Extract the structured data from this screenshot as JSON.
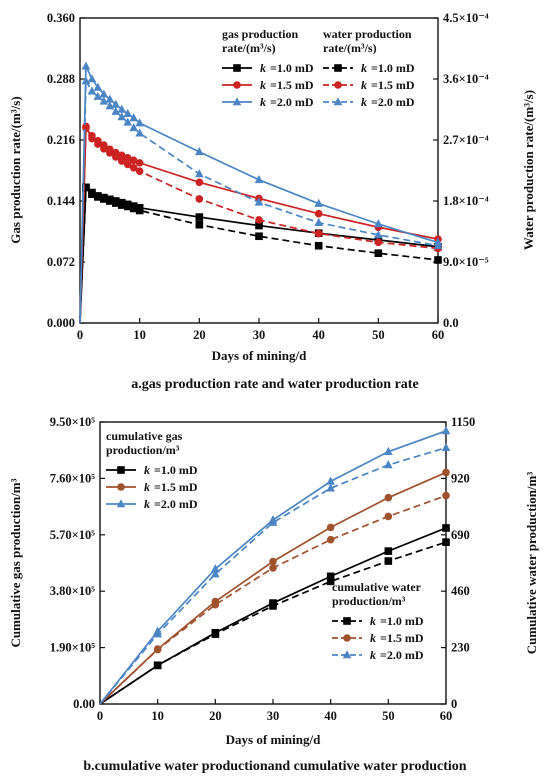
{
  "chart_data": [
    {
      "type": "line",
      "caption": "a.gas production rate and water production rate",
      "xlabel": "Days of mining/d",
      "ylabel": "Gas production rate/(m³/s)",
      "y2label": "Water production rate/(m³/s)",
      "xlim": [
        0,
        60
      ],
      "ylim": [
        0,
        0.36
      ],
      "y2lim": [
        0,
        0.00045
      ],
      "xticks": [
        "0",
        "10",
        "20",
        "30",
        "40",
        "50",
        "60"
      ],
      "yticks": [
        "0.000",
        "0.072",
        "0.144",
        "0.216",
        "0.288",
        "0.360"
      ],
      "y2ticks": [
        "0.0",
        "9.0×10⁻⁵",
        "1.8×10⁻⁴",
        "2.7×10⁻⁴",
        "3.6×10⁻⁴",
        "4.5×10⁻⁴"
      ],
      "legend_left_title": [
        "gas production",
        "rate/(m³/s)"
      ],
      "legend_right_title": [
        "water production",
        "rate/(m³/s)"
      ],
      "legend_labels": [
        "=1.0 mD",
        "=1.5 mD",
        "=2.0 mD"
      ],
      "legend_k": "k",
      "x": [
        0,
        1,
        2,
        3,
        4,
        5,
        6,
        7,
        8,
        9,
        10,
        20,
        30,
        40,
        50,
        60
      ],
      "series": [
        {
          "name": "k =1.0 mD",
          "kind": "gas",
          "axis": "left",
          "color": "#000000",
          "marker": "square",
          "dash": false,
          "values": [
            0,
            0.16,
            0.154,
            0.15,
            0.148,
            0.146,
            0.144,
            0.142,
            0.14,
            0.138,
            0.136,
            0.125,
            0.115,
            0.106,
            0.098,
            0.09
          ]
        },
        {
          "name": "k =1.5 mD",
          "kind": "gas",
          "axis": "left",
          "color": "#cc2222",
          "marker": "circle",
          "dash": false,
          "values": [
            0,
            0.23,
            0.221,
            0.215,
            0.21,
            0.205,
            0.201,
            0.198,
            0.195,
            0.192,
            0.189,
            0.166,
            0.147,
            0.129,
            0.113,
            0.099
          ]
        },
        {
          "name": "k =2.0 mD",
          "kind": "gas",
          "axis": "left",
          "color": "#4a86c4",
          "marker": "triangle",
          "dash": false,
          "values": [
            0,
            0.303,
            0.288,
            0.278,
            0.27,
            0.264,
            0.258,
            0.252,
            0.247,
            0.242,
            0.236,
            0.202,
            0.169,
            0.141,
            0.117,
            0.095
          ]
        },
        {
          "name": "k =1.0 mD",
          "kind": "water",
          "axis": "right",
          "color": "#000000",
          "marker": "square",
          "dash": true,
          "values": [
            0,
            0.0002,
            0.00019,
            0.000186,
            0.000183,
            0.00018,
            0.000177,
            0.000174,
            0.000172,
            0.000169,
            0.000166,
            0.000145,
            0.000128,
            0.000114,
            0.000103,
            9.3e-05
          ]
        },
        {
          "name": "k =1.5 mD",
          "kind": "water",
          "axis": "right",
          "color": "#cc2222",
          "marker": "circle",
          "dash": true,
          "values": [
            0,
            0.00029,
            0.000272,
            0.000264,
            0.000257,
            0.000251,
            0.000245,
            0.000239,
            0.000234,
            0.000229,
            0.000224,
            0.000183,
            0.000152,
            0.000132,
            0.000119,
            0.00011
          ]
        },
        {
          "name": "k =2.0 mD",
          "kind": "water",
          "axis": "right",
          "color": "#4a86c4",
          "marker": "triangle",
          "dash": true,
          "values": [
            0,
            0.000357,
            0.000342,
            0.000334,
            0.000327,
            0.00032,
            0.000312,
            0.000304,
            0.000296,
            0.000288,
            0.00028,
            0.00022,
            0.000178,
            0.000148,
            0.00013,
            0.000114
          ]
        }
      ]
    },
    {
      "type": "line",
      "caption": "b.cumulative water productionand cumulative water production",
      "xlabel": "Days of mining/d",
      "ylabel": "Cumulative gas production/m³",
      "y2label": "Cumulative water production/m³",
      "xlim": [
        0,
        60
      ],
      "ylim": [
        0,
        950000
      ],
      "y2lim": [
        0,
        1150
      ],
      "xticks": [
        "0",
        "10",
        "20",
        "30",
        "40",
        "50",
        "60"
      ],
      "yticks": [
        "0.00",
        "1.90×10⁵",
        "3.80×10⁵",
        "5.70×10⁵",
        "7.60×10⁵",
        "9.50×10⁵"
      ],
      "y2ticks": [
        "0",
        "230",
        "460",
        "690",
        "920",
        "1150"
      ],
      "legend_left_title": [
        "cumulative gas",
        "production/m³"
      ],
      "legend_right_title": [
        "cumulative water",
        "production/m³"
      ],
      "legend_labels": [
        "=1.0 mD",
        "=1.5 mD",
        "=2.0 mD"
      ],
      "legend_k": "k",
      "x": [
        0,
        10,
        20,
        30,
        40,
        50,
        60
      ],
      "series": [
        {
          "name": "k =1.0 mD",
          "kind": "gas",
          "axis": "left",
          "color": "#000000",
          "marker": "square",
          "dash": false,
          "values": [
            0,
            130000,
            240000,
            340000,
            430000,
            515000,
            593000
          ]
        },
        {
          "name": "k =1.5 mD",
          "kind": "gas",
          "axis": "left",
          "color": "#a0522d",
          "marker": "circle",
          "dash": false,
          "values": [
            0,
            185000,
            345000,
            480000,
            595000,
            695000,
            780000
          ]
        },
        {
          "name": "k =2.0 mD",
          "kind": "gas",
          "axis": "left",
          "color": "#4a86c4",
          "marker": "triangle",
          "dash": false,
          "values": [
            0,
            245000,
            455000,
            620000,
            750000,
            850000,
            920000
          ]
        },
        {
          "name": "k =1.0 mD",
          "kind": "water",
          "axis": "right",
          "color": "#000000",
          "marker": "square",
          "dash": true,
          "values": [
            0,
            158,
            285,
            400,
            500,
            583,
            660
          ]
        },
        {
          "name": "k =1.5 mD",
          "kind": "water",
          "axis": "right",
          "color": "#a0522d",
          "marker": "circle",
          "dash": true,
          "values": [
            0,
            222,
            405,
            555,
            670,
            765,
            850
          ]
        },
        {
          "name": "k =2.0 mD",
          "kind": "water",
          "axis": "right",
          "color": "#4a86c4",
          "marker": "triangle",
          "dash": true,
          "values": [
            0,
            285,
            530,
            740,
            880,
            975,
            1045
          ]
        }
      ]
    }
  ]
}
